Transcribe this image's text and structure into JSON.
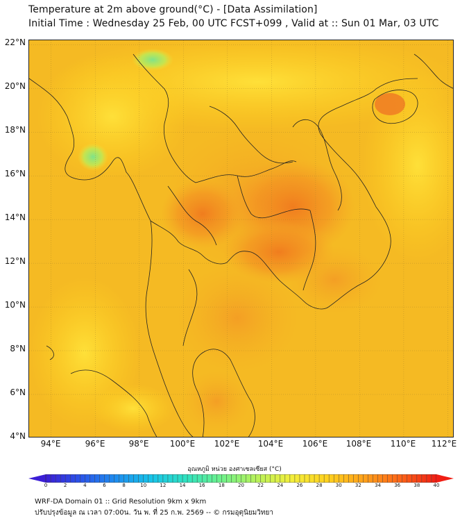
{
  "header": {
    "title_line1": "Temperature at 2m above ground(°C) - [Data Assimilation]",
    "title_line2": "Initial Time : Wednesday 25 Feb, 00 UTC FCST+099 , Valid at :: Sun 01 Mar, 03 UTC"
  },
  "map": {
    "lon_range": [
      93,
      112.3
    ],
    "lat_range": [
      4,
      22.2
    ],
    "lat_labels": [
      "22°N",
      "20°N",
      "18°N",
      "16°N",
      "14°N",
      "12°N",
      "10°N",
      "8°N",
      "6°N",
      "4°N"
    ],
    "lon_labels": [
      "94°E",
      "96°E",
      "98°E",
      "100°E",
      "102°E",
      "104°E",
      "106°E",
      "108°E",
      "110°E",
      "112°E"
    ],
    "grid": true,
    "background_color": "#f5ba23"
  },
  "colorbar": {
    "title": "อุณหภูมิ หน่วย องศาเซลเซียส (°C)",
    "min": 0,
    "max": 40,
    "tick_labels": [
      "0",
      "2",
      "4",
      "6",
      "8",
      "10",
      "12",
      "14",
      "16",
      "18",
      "20",
      "22",
      "24",
      "26",
      "28",
      "30",
      "32",
      "34",
      "36",
      "38",
      "40"
    ],
    "colors": [
      "#3b1ed6",
      "#2a55ea",
      "#1e8ef0",
      "#17c4ea",
      "#2fe3c0",
      "#6ef28a",
      "#b8f25a",
      "#f4ef3a",
      "#ffd21e",
      "#ffa41a",
      "#ff6a18",
      "#f01e14"
    ]
  },
  "footer": {
    "line1": "WRF-DA Domain 01 :: Grid Resolution 9km x 9km",
    "line2": "ปรับปรุงข้อมูล ณ เวลา 07:00น. วัน พ. ที่ 25 ก.พ. 2569 -- © กรมอุตุนิยมวิทยา"
  }
}
